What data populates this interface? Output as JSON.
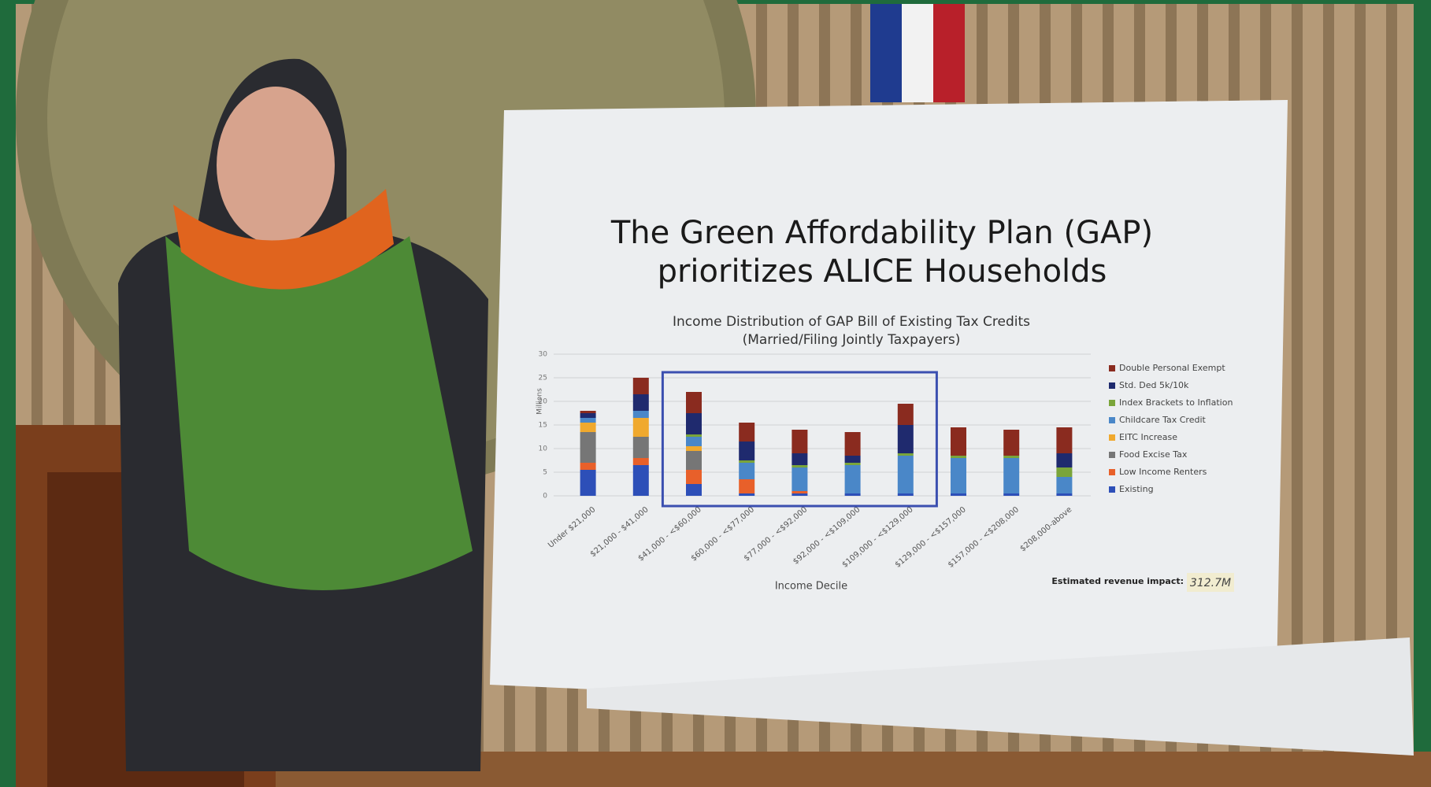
{
  "board": {
    "headline": [
      "The Green Affordability Plan (GAP)",
      "prioritizes ALICE Households"
    ]
  },
  "chart_data": {
    "type": "stacked-bar",
    "title": "Income Distribution of GAP Bill of Existing Tax Credits",
    "subtitle": "(Married/Filing Jointly Taxpayers)",
    "y_label": "Millions",
    "x_label": "Income Decile",
    "categories": [
      "Under $21,000",
      "$21,000 - $41,000",
      "$41,000 - <$60,000",
      "$60,000 - <$77,000",
      "$77,000 - <$92,000",
      "$92,000 - <$109,000",
      "$109,000 - <$129,000",
      "$129,000 - <$157,000",
      "$157,000 - <$208,000",
      "$208,000-above"
    ],
    "series": [
      {
        "name": "Existing",
        "color": "#2d4fb8",
        "values": [
          5.5,
          6.5,
          2.5,
          0.5,
          0.5,
          0.5,
          0.5,
          0.5,
          0.5,
          0.5
        ]
      },
      {
        "name": "Low Income Renters",
        "color": "#e8602a",
        "values": [
          1.5,
          1.5,
          3,
          3,
          0.5,
          0,
          0,
          0,
          0,
          0
        ]
      },
      {
        "name": "Food Excise Tax",
        "color": "#767676",
        "values": [
          6.5,
          4.5,
          4,
          0,
          0,
          0,
          0,
          0,
          0,
          0
        ]
      },
      {
        "name": "EITC Increase",
        "color": "#f0a92e",
        "values": [
          2,
          4,
          1,
          0,
          0,
          0,
          0,
          0,
          0,
          0
        ]
      },
      {
        "name": "Childcare Tax Credit",
        "color": "#4a87c8",
        "values": [
          1,
          1.5,
          2,
          3.5,
          5,
          6,
          8,
          7.5,
          7.5,
          3.5
        ]
      },
      {
        "name": "Index Brackets to Inflation",
        "color": "#7aa53a",
        "values": [
          0,
          0,
          0.5,
          0.5,
          0.5,
          0.5,
          0.5,
          0.5,
          0.5,
          2
        ]
      },
      {
        "name": "Std. Ded 5k/10k",
        "color": "#1f2a6e",
        "values": [
          1,
          3.5,
          4.5,
          4,
          2.5,
          1.5,
          6,
          0,
          0,
          3
        ]
      },
      {
        "name": "Double Personal Exempt",
        "color": "#8a2b1f",
        "values": [
          0.5,
          3.5,
          4.5,
          4,
          5,
          5,
          4.5,
          6,
          5.5,
          5.5
        ]
      }
    ],
    "ylim": [
      0,
      30
    ],
    "yticks": [
      0,
      5,
      10,
      15,
      20,
      25,
      30
    ],
    "grid": true,
    "annotation_label": "Estimated revenue impact:",
    "annotation_value": "312.7M"
  }
}
